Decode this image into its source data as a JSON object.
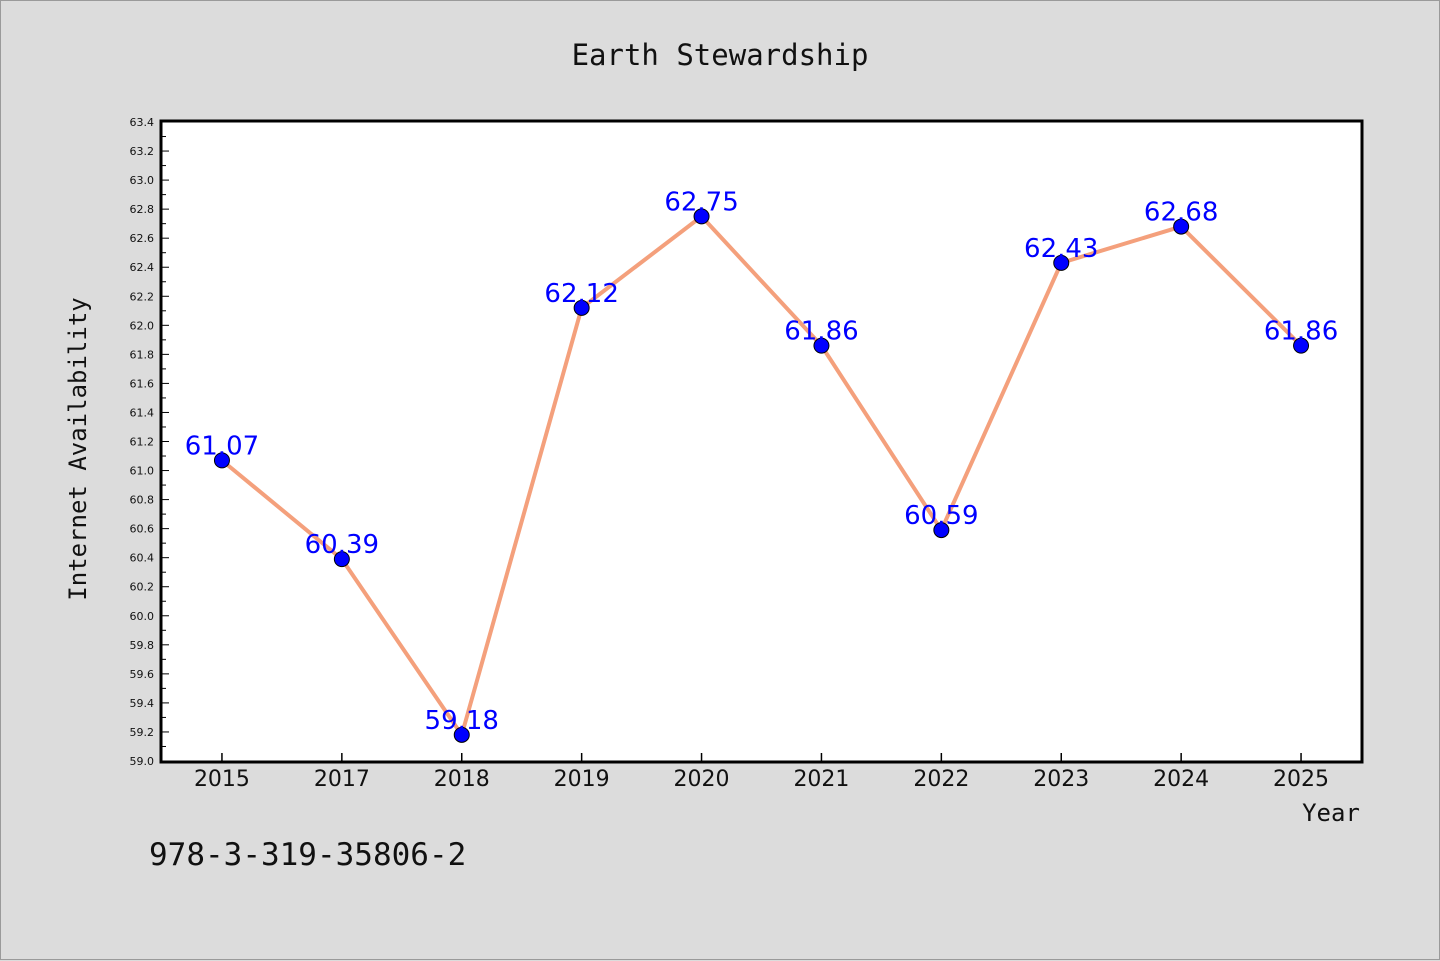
{
  "chart_data": {
    "type": "line",
    "title": "Earth Stewardship",
    "xlabel": "Year",
    "ylabel": "Internet Availability",
    "categories": [
      "2015",
      "2017",
      "2018",
      "2019",
      "2020",
      "2021",
      "2022",
      "2023",
      "2024",
      "2025"
    ],
    "series": [
      {
        "values": [
          61.07,
          60.39,
          59.18,
          62.12,
          62.75,
          61.86,
          60.59,
          62.43,
          62.68,
          61.86
        ],
        "data_labels": [
          "61.07",
          "60.39",
          "59.18",
          "62.12",
          "62.75",
          "61.86",
          "60.59",
          "62.43",
          "62.68",
          "61.86"
        ]
      }
    ],
    "ylim": [
      59.0,
      63.4
    ],
    "yticks": [
      "59.0",
      "59.2",
      "59.4",
      "59.6",
      "59.8",
      "60.0",
      "60.2",
      "60.4",
      "60.6",
      "60.8",
      "61.0",
      "61.2",
      "61.4",
      "61.6",
      "61.8",
      "62.0",
      "62.2",
      "62.4",
      "62.6",
      "62.8",
      "63.0",
      "63.2",
      "63.4"
    ],
    "grid": false,
    "legend": "none",
    "colors": {
      "line": "#f4a07c",
      "marker": "#0000ff",
      "data_label": "#0000ff",
      "plot_background": "#ffffff",
      "figure_background": "#dcdcdc"
    }
  },
  "annotation": "978-3-319-35806-2"
}
